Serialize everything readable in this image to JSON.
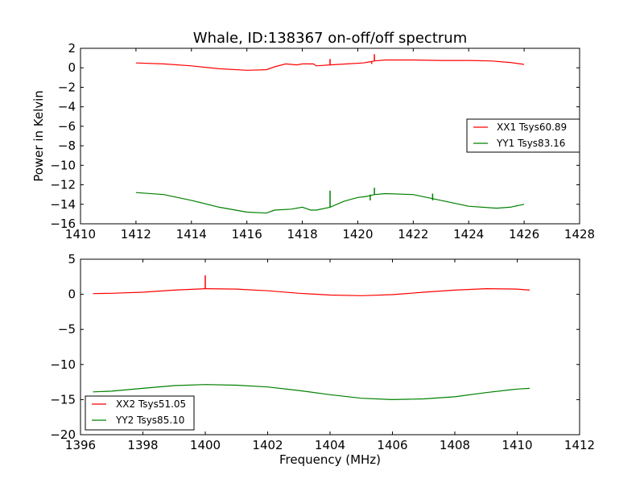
{
  "chart_data": [
    {
      "type": "line",
      "title": "Whale, ID:138367 on-off/off spectrum",
      "xlabel": "",
      "ylabel": "Power in Kelvin",
      "xlim": [
        1410,
        1428
      ],
      "ylim": [
        -16,
        2
      ],
      "xticks": [
        1410,
        1412,
        1414,
        1416,
        1418,
        1420,
        1422,
        1424,
        1426,
        1428
      ],
      "yticks": [
        2,
        0,
        -2,
        -4,
        -6,
        -8,
        -10,
        -12,
        -14,
        -16
      ],
      "xtick_labels": [
        "1410",
        "1412",
        "1414",
        "1416",
        "1418",
        "1420",
        "1422",
        "1424",
        "1426",
        "1428"
      ],
      "ytick_labels": [
        "2",
        "0",
        "−2",
        "−4",
        "−6",
        "−8",
        "−10",
        "−12",
        "−14",
        "−16"
      ],
      "legend_position": "center-right",
      "grid": false,
      "series": [
        {
          "name": "XX1 Tsys60.89",
          "color": "#ff0000",
          "x": [
            1412.0,
            1413.0,
            1414.0,
            1415.0,
            1416.0,
            1416.7,
            1417.0,
            1417.4,
            1417.8,
            1418.0,
            1418.4,
            1418.5,
            1419.0,
            1419.6,
            1420.2,
            1420.4,
            1420.6,
            1421.0,
            1422.0,
            1423.0,
            1424.0,
            1424.8,
            1425.5,
            1426.0
          ],
          "y": [
            0.5,
            0.4,
            0.2,
            -0.1,
            -0.25,
            -0.2,
            0.1,
            0.4,
            0.3,
            0.4,
            0.4,
            0.2,
            0.3,
            0.4,
            0.5,
            0.6,
            0.7,
            0.8,
            0.8,
            0.75,
            0.75,
            0.7,
            0.55,
            0.35
          ]
        },
        {
          "name": "YY1 Tsys83.16",
          "color": "#008000",
          "x": [
            1412.0,
            1413.0,
            1414.0,
            1415.0,
            1416.0,
            1416.7,
            1417.0,
            1417.6,
            1418.0,
            1418.3,
            1418.5,
            1419.0,
            1419.5,
            1420.0,
            1420.3,
            1420.6,
            1421.0,
            1422.0,
            1423.0,
            1424.0,
            1425.0,
            1425.5,
            1426.0
          ],
          "y": [
            -12.8,
            -13.0,
            -13.6,
            -14.3,
            -14.8,
            -14.9,
            -14.6,
            -14.5,
            -14.3,
            -14.6,
            -14.6,
            -14.3,
            -13.7,
            -13.3,
            -13.2,
            -13.0,
            -12.9,
            -13.0,
            -13.6,
            -14.2,
            -14.4,
            -14.3,
            -14.0
          ]
        }
      ],
      "spikes": [
        {
          "series": 0,
          "x": 1419.0,
          "y": 0.9
        },
        {
          "series": 0,
          "x": 1420.6,
          "y": 1.4
        },
        {
          "series": 0,
          "x": 1420.5,
          "y": 0.4
        },
        {
          "series": 1,
          "x": 1419.0,
          "y": -12.6
        },
        {
          "series": 1,
          "x": 1420.6,
          "y": -12.3
        },
        {
          "series": 1,
          "x": 1420.45,
          "y": -13.6
        },
        {
          "series": 1,
          "x": 1422.7,
          "y": -12.9
        }
      ]
    },
    {
      "type": "line",
      "title": "",
      "xlabel": "Frequency (MHz)",
      "ylabel": "",
      "xlim": [
        1396,
        1412
      ],
      "ylim": [
        -20,
        5
      ],
      "xticks": [
        1396,
        1398,
        1400,
        1402,
        1404,
        1406,
        1408,
        1410,
        1412
      ],
      "yticks": [
        5,
        0,
        -5,
        -10,
        -15,
        -20
      ],
      "xtick_labels": [
        "1396",
        "1398",
        "1400",
        "1402",
        "1404",
        "1406",
        "1408",
        "1410",
        "1412"
      ],
      "ytick_labels": [
        "5",
        "0",
        "−5",
        "−10",
        "−15",
        "−20"
      ],
      "legend_position": "lower-left",
      "grid": false,
      "series": [
        {
          "name": "XX2 Tsys51.05",
          "color": "#ff0000",
          "x": [
            1396.4,
            1397.0,
            1398.0,
            1399.0,
            1400.0,
            1401.0,
            1402.0,
            1403.0,
            1404.0,
            1405.0,
            1406.0,
            1407.0,
            1408.0,
            1409.0,
            1410.0,
            1410.4
          ],
          "y": [
            0.1,
            0.15,
            0.3,
            0.6,
            0.8,
            0.75,
            0.5,
            0.15,
            -0.1,
            -0.2,
            -0.05,
            0.3,
            0.6,
            0.8,
            0.75,
            0.6
          ]
        },
        {
          "name": "YY2 Tsys85.10",
          "color": "#008000",
          "x": [
            1396.4,
            1397.0,
            1398.0,
            1399.0,
            1400.0,
            1401.0,
            1402.0,
            1403.0,
            1404.0,
            1405.0,
            1406.0,
            1407.0,
            1408.0,
            1409.0,
            1410.0,
            1410.4
          ],
          "y": [
            -13.9,
            -13.8,
            -13.4,
            -13.0,
            -12.85,
            -12.95,
            -13.2,
            -13.7,
            -14.3,
            -14.8,
            -15.0,
            -14.9,
            -14.6,
            -14.0,
            -13.5,
            -13.4
          ]
        }
      ],
      "spikes": [
        {
          "series": 0,
          "x": 1400.0,
          "y": 2.7
        }
      ]
    }
  ]
}
